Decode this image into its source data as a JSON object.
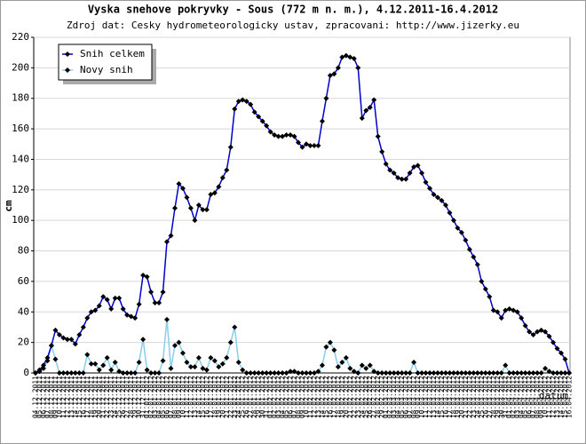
{
  "chart_data": {
    "type": "line",
    "title": "Vyska snehove pokryvky - Sous (772 m n. m.), 4.12.2011-16.4.2012",
    "subtitle": "Zdroj dat: Cesky hydrometeorologicky ustav, zpracovani: http://www.jizerky.eu",
    "y_label": "cm",
    "x_label": "datum",
    "ylim": [
      0,
      220
    ],
    "yticks": [
      0,
      20,
      40,
      60,
      80,
      100,
      120,
      140,
      160,
      180,
      200,
      220
    ],
    "grid": true,
    "legend": "upper left",
    "categories": [
      "04.12.2011",
      "05.12.2011",
      "06.12.2011",
      "07.12.2011",
      "08.12.2011",
      "09.12.2011",
      "10.12.2011",
      "11.12.2011",
      "12.12.2011",
      "13.12.2011",
      "14.12.2011",
      "15.12.2011",
      "16.12.2011",
      "17.12.2011",
      "18.12.2011",
      "19.12.2011",
      "20.12.2011",
      "21.12.2011",
      "22.12.2011",
      "23.12.2011",
      "24.12.2011",
      "25.12.2011",
      "26.12.2011",
      "27.12.2011",
      "28.12.2011",
      "29.12.2011",
      "30.12.2011",
      "31.12.2011",
      "01.01.2012",
      "02.01.2012",
      "03.01.2012",
      "04.01.2012",
      "05.01.2012",
      "06.01.2012",
      "07.01.2012",
      "08.01.2012",
      "09.01.2012",
      "10.01.2012",
      "11.01.2012",
      "12.01.2012",
      "13.01.2012",
      "14.01.2012",
      "15.01.2012",
      "16.01.2012",
      "17.01.2012",
      "18.01.2012",
      "19.01.2012",
      "20.01.2012",
      "21.01.2012",
      "22.01.2012",
      "23.01.2012",
      "24.01.2012",
      "25.01.2012",
      "26.01.2012",
      "27.01.2012",
      "28.01.2012",
      "29.01.2012",
      "30.01.2012",
      "31.01.2012",
      "01.02.2012",
      "02.02.2012",
      "03.02.2012",
      "04.02.2012",
      "05.02.2012",
      "06.02.2012",
      "07.02.2012",
      "08.02.2012",
      "09.02.2012",
      "10.02.2012",
      "11.02.2012",
      "12.02.2012",
      "13.02.2012",
      "14.02.2012",
      "15.02.2012",
      "16.02.2012",
      "17.02.2012",
      "18.02.2012",
      "19.02.2012",
      "20.02.2012",
      "21.02.2012",
      "22.02.2012",
      "23.02.2012",
      "24.02.2012",
      "25.02.2012",
      "26.02.2012",
      "27.02.2012",
      "28.02.2012",
      "29.02.2012",
      "01.03.2012",
      "02.03.2012",
      "03.03.2012",
      "04.03.2012",
      "05.03.2012",
      "06.03.2012",
      "07.03.2012",
      "08.03.2012",
      "09.03.2012",
      "10.03.2012",
      "11.03.2012",
      "12.03.2012",
      "13.03.2012",
      "14.03.2012",
      "15.03.2012",
      "16.03.2012",
      "17.03.2012",
      "18.03.2012",
      "19.03.2012",
      "20.03.2012",
      "21.03.2012",
      "22.03.2012",
      "23.03.2012",
      "24.03.2012",
      "25.03.2012",
      "26.03.2012",
      "27.03.2012",
      "28.03.2012",
      "29.03.2012",
      "30.03.2012",
      "31.03.2012",
      "01.04.2012",
      "02.04.2012",
      "03.04.2012",
      "04.04.2012",
      "05.04.2012",
      "06.04.2012",
      "07.04.2012",
      "08.04.2012",
      "09.04.2012",
      "10.04.2012",
      "11.04.2012",
      "12.04.2012",
      "13.04.2012",
      "14.04.2012",
      "15.04.2012",
      "16.04.2012"
    ],
    "series": [
      {
        "name": "Snih celkem",
        "color": "#0000cc",
        "values": [
          0,
          2,
          5,
          10,
          18,
          28,
          25,
          23,
          22,
          22,
          19,
          25,
          30,
          36,
          40,
          41,
          44,
          50,
          48,
          42,
          49,
          49,
          42,
          38,
          37,
          36,
          45,
          64,
          63,
          53,
          46,
          46,
          53,
          86,
          90,
          108,
          124,
          121,
          115,
          108,
          100,
          110,
          107,
          107,
          117,
          118,
          122,
          128,
          133,
          148,
          173,
          178,
          179,
          178,
          176,
          171,
          168,
          165,
          162,
          158,
          156,
          155,
          155,
          156,
          156,
          155,
          151,
          148,
          150,
          149,
          149,
          149,
          165,
          180,
          195,
          196,
          200,
          207,
          208,
          207,
          206,
          200,
          167,
          172,
          174,
          179,
          155,
          145,
          137,
          133,
          131,
          128,
          127,
          127,
          131,
          135,
          136,
          131,
          125,
          121,
          117,
          115,
          113,
          110,
          105,
          100,
          95,
          92,
          87,
          81,
          76,
          71,
          60,
          55,
          50,
          41,
          40,
          36,
          41,
          42,
          41,
          40,
          36,
          31,
          27,
          25,
          27,
          28,
          27,
          24,
          20,
          16,
          13,
          9,
          0
        ]
      },
      {
        "name": "Novy snih",
        "color": "#87ceeb",
        "values": [
          0,
          1,
          3,
          8,
          18,
          9,
          0,
          0,
          0,
          0,
          0,
          0,
          0,
          12,
          6,
          6,
          2,
          5,
          10,
          2,
          7,
          1,
          0,
          0,
          0,
          0,
          7,
          22,
          2,
          0,
          0,
          0,
          8,
          35,
          3,
          18,
          20,
          13,
          7,
          4,
          4,
          10,
          3,
          2,
          10,
          8,
          4,
          6,
          10,
          20,
          30,
          7,
          2,
          0,
          0,
          0,
          0,
          0,
          0,
          0,
          0,
          0,
          0,
          0,
          1,
          1,
          0,
          0,
          0,
          0,
          0,
          1,
          5,
          17,
          20,
          15,
          4,
          7,
          10,
          3,
          1,
          0,
          5,
          3,
          5,
          1,
          0,
          0,
          0,
          0,
          0,
          0,
          0,
          0,
          0,
          7,
          0,
          0,
          0,
          0,
          0,
          0,
          0,
          0,
          0,
          0,
          0,
          0,
          0,
          0,
          0,
          0,
          0,
          0,
          0,
          0,
          0,
          0,
          5,
          0,
          0,
          0,
          0,
          0,
          0,
          0,
          0,
          0,
          3,
          1,
          0,
          0,
          0,
          0,
          0
        ]
      }
    ]
  }
}
